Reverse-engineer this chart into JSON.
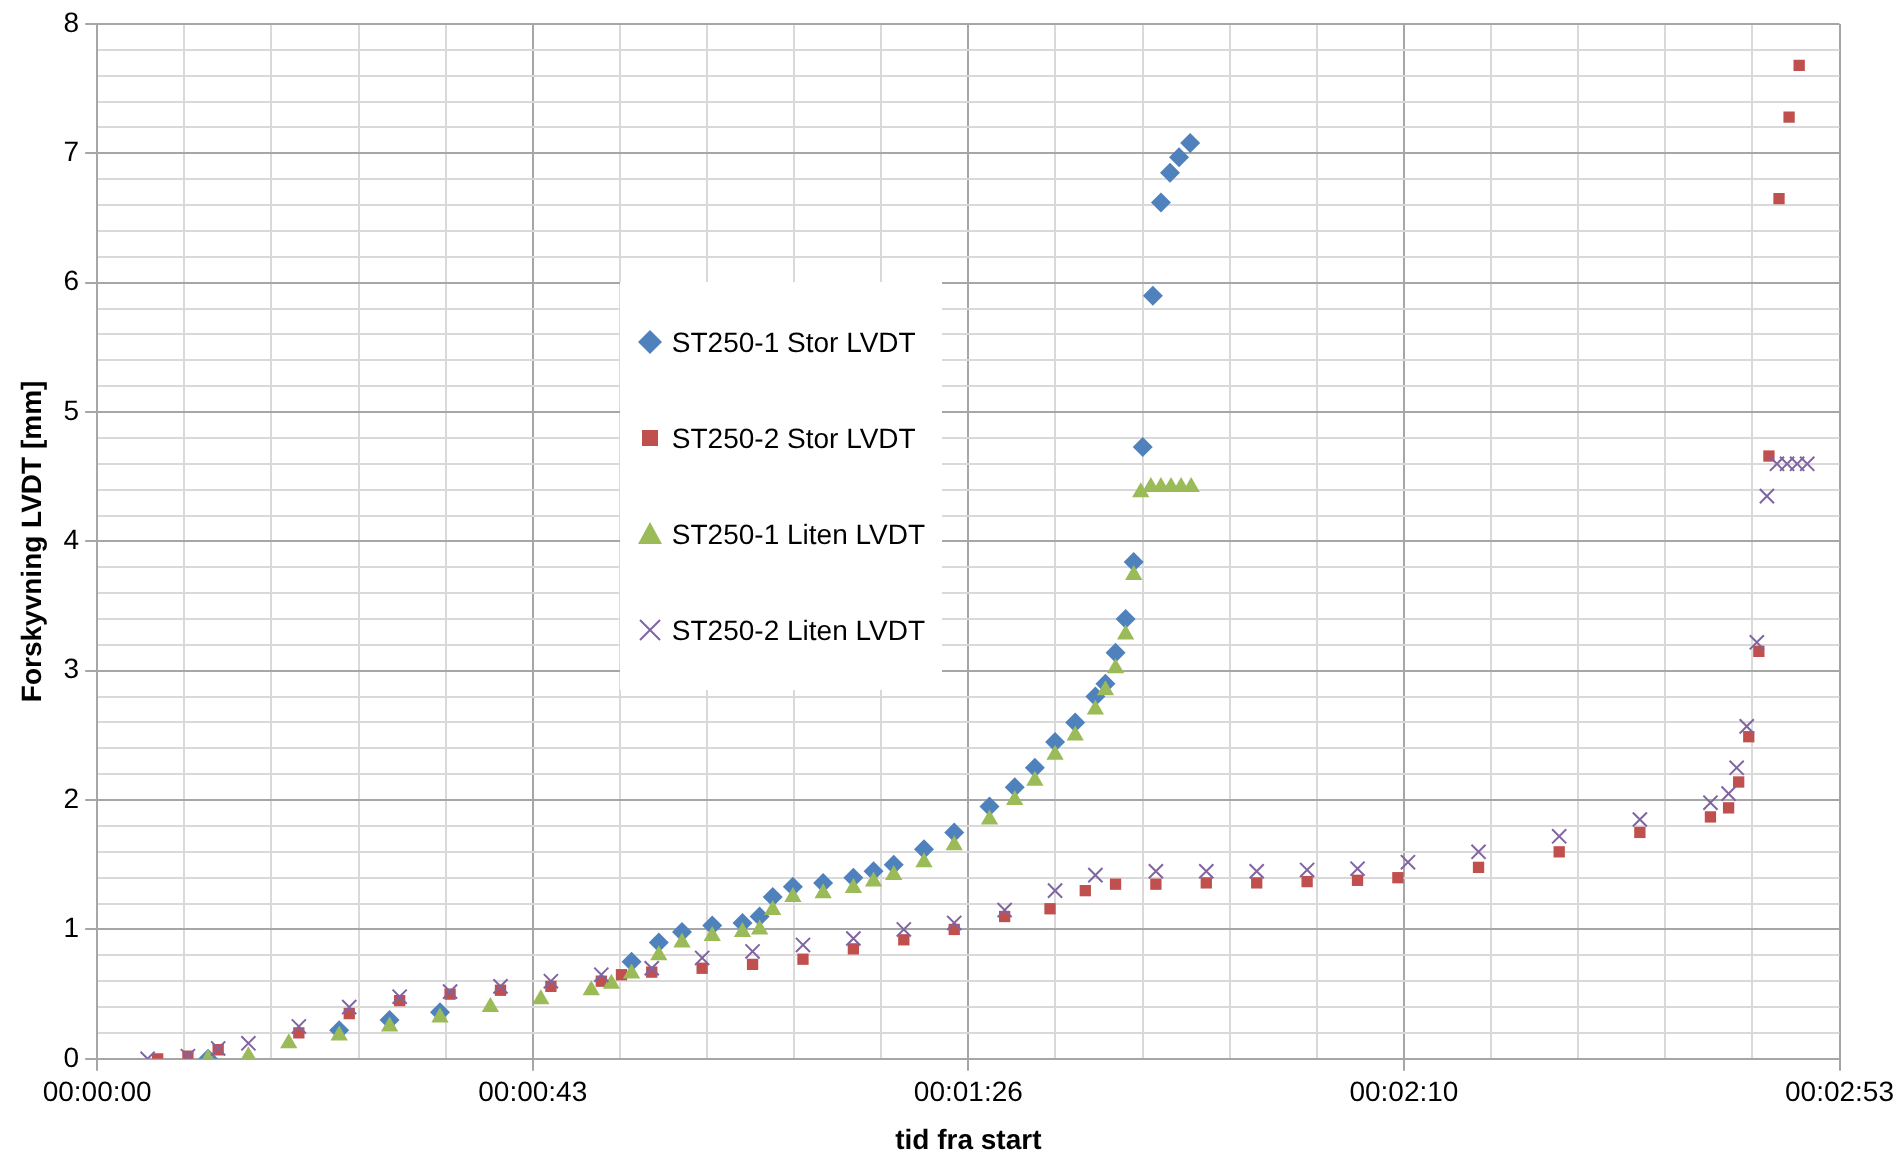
{
  "chart_data": {
    "type": "scatter",
    "xlabel": "tid fra start",
    "ylabel": "Forskyvning LVDT [mm]",
    "legend": "center",
    "grid": true,
    "xlim": [
      0,
      172.8
    ],
    "ylim": [
      0,
      8
    ],
    "xticks": [
      {
        "value": 0,
        "label": "00:00:00"
      },
      {
        "value": 8.64,
        "label": null
      },
      {
        "value": 17.28,
        "label": null
      },
      {
        "value": 25.92,
        "label": null
      },
      {
        "value": 34.56,
        "label": null
      },
      {
        "value": 43.2,
        "label": "00:00:43"
      },
      {
        "value": 51.84,
        "label": null
      },
      {
        "value": 60.48,
        "label": null
      },
      {
        "value": 69.12,
        "label": null
      },
      {
        "value": 77.76,
        "label": null
      },
      {
        "value": 86.4,
        "label": "00:01:26"
      },
      {
        "value": 95.04,
        "label": null
      },
      {
        "value": 103.68,
        "label": null
      },
      {
        "value": 112.32,
        "label": null
      },
      {
        "value": 120.96,
        "label": null
      },
      {
        "value": 129.6,
        "label": "00:02:10"
      },
      {
        "value": 138.24,
        "label": null
      },
      {
        "value": 146.88,
        "label": null
      },
      {
        "value": 155.52,
        "label": null
      },
      {
        "value": 164.16,
        "label": null
      },
      {
        "value": 172.8,
        "label": "00:02:53"
      }
    ],
    "yticks": [
      0,
      {
        "value": 0.2,
        "label": null
      },
      {
        "value": 0.4,
        "label": null
      },
      {
        "value": 0.6,
        "label": null
      },
      {
        "value": 0.8,
        "label": null
      },
      1,
      {
        "value": 1.2,
        "label": null
      },
      {
        "value": 1.4,
        "label": null
      },
      {
        "value": 1.6,
        "label": null
      },
      {
        "value": 1.8,
        "label": null
      },
      2,
      {
        "value": 2.2,
        "label": null
      },
      {
        "value": 2.4,
        "label": null
      },
      {
        "value": 2.6,
        "label": null
      },
      {
        "value": 2.8,
        "label": null
      },
      3,
      {
        "value": 3.2,
        "label": null
      },
      {
        "value": 3.4,
        "label": null
      },
      {
        "value": 3.6,
        "label": null
      },
      {
        "value": 3.8,
        "label": null
      },
      4,
      {
        "value": 4.2,
        "label": null
      },
      {
        "value": 4.4,
        "label": null
      },
      {
        "value": 4.6,
        "label": null
      },
      {
        "value": 4.8,
        "label": null
      },
      5,
      {
        "value": 5.2,
        "label": null
      },
      {
        "value": 5.4,
        "label": null
      },
      {
        "value": 5.6,
        "label": null
      },
      {
        "value": 5.8,
        "label": null
      },
      6,
      {
        "value": 6.2,
        "label": null
      },
      {
        "value": 6.4,
        "label": null
      },
      {
        "value": 6.6,
        "label": null
      },
      {
        "value": 6.8,
        "label": null
      },
      7,
      {
        "value": 7.2,
        "label": null
      },
      {
        "value": 7.4,
        "label": null
      },
      {
        "value": 7.6,
        "label": null
      },
      {
        "value": 7.8,
        "label": null
      },
      8
    ],
    "series": [
      {
        "name": "ST250-1 Stor LVDT",
        "color": "#4f81bd",
        "marker": "diamond",
        "x": [
          11,
          15,
          19,
          24,
          29,
          34,
          39,
          44,
          49,
          51,
          53,
          55.7,
          58,
          61,
          64,
          65.7,
          67,
          69,
          72,
          75,
          77,
          79,
          82,
          85,
          88.5,
          91,
          93,
          95,
          97,
          99,
          100,
          101,
          102,
          102.8,
          103.7,
          104.7,
          105.5,
          106.4,
          107.3,
          108.4
        ],
        "values": [
          0,
          null,
          null,
          0.22,
          0.3,
          0.36,
          null,
          null,
          null,
          null,
          0.75,
          0.9,
          0.98,
          1.03,
          1.05,
          1.1,
          1.25,
          1.33,
          1.36,
          1.4,
          1.45,
          1.5,
          1.62,
          1.75,
          1.95,
          2.1,
          2.25,
          2.45,
          2.6,
          2.8,
          2.9,
          3.14,
          3.4,
          3.84,
          4.73,
          5.9,
          6.62,
          6.85,
          6.97,
          7.08
        ]
      },
      {
        "name": "ST250-2 Stor LVDT",
        "color": "#c0504d",
        "marker": "square",
        "x": [
          6,
          9,
          12,
          15,
          20,
          25,
          30,
          35,
          40,
          45,
          50,
          52,
          55,
          60,
          65,
          70,
          75,
          80,
          85,
          90,
          94.5,
          98,
          101,
          105,
          110,
          115,
          120,
          125,
          129,
          137,
          145,
          153,
          160,
          161.8,
          162.8,
          163.8,
          164.8,
          165.8,
          166.8,
          167.8,
          168.8
        ],
        "values": [
          0,
          0.02,
          0.07,
          null,
          0.2,
          0.35,
          0.45,
          0.5,
          0.53,
          0.56,
          0.6,
          0.65,
          0.67,
          0.7,
          0.73,
          0.77,
          0.85,
          0.92,
          1,
          1.1,
          1.16,
          1.3,
          1.35,
          1.35,
          1.36,
          1.36,
          1.37,
          1.38,
          1.4,
          1.48,
          1.6,
          1.75,
          1.87,
          1.94,
          2.14,
          2.49,
          3.15,
          4.66,
          6.65,
          7.28,
          7.68
        ]
      },
      {
        "name": "ST250-1 Liten LVDT",
        "color": "#9bbb59",
        "marker": "triangle",
        "x": [
          11,
          15,
          19,
          24,
          29,
          34,
          39,
          44,
          49,
          51,
          53,
          55.7,
          58,
          61,
          64,
          65.7,
          67,
          69,
          72,
          75,
          77,
          79,
          82,
          85,
          88.5,
          91,
          93,
          95,
          97,
          99,
          100,
          101,
          102,
          102.8,
          103.5,
          104.5,
          105.5,
          106.5,
          107.5,
          108.5
        ],
        "values": [
          0,
          0.02,
          0.12,
          0.18,
          0.25,
          0.32,
          0.4,
          0.46,
          0.53,
          0.58,
          0.66,
          0.8,
          0.9,
          0.95,
          0.98,
          1,
          1.15,
          1.25,
          1.28,
          1.32,
          1.37,
          1.42,
          1.52,
          1.65,
          1.85,
          2,
          2.15,
          2.35,
          2.5,
          2.7,
          2.85,
          3.02,
          3.28,
          3.74,
          4.38,
          4.42,
          4.42,
          4.42,
          4.42,
          4.42
        ]
      },
      {
        "name": "ST250-2 Liten LVDT",
        "color": "#8064a2",
        "marker": "cross",
        "x": [
          5,
          9,
          12,
          15,
          20,
          25,
          30,
          35,
          40,
          45,
          50,
          55,
          60,
          65,
          70,
          75,
          80,
          85,
          90,
          95,
          99,
          105,
          110,
          115,
          120,
          125,
          130,
          137,
          145,
          153,
          160,
          161.8,
          162.6,
          163.6,
          164.6,
          165.6,
          166.6,
          167.6,
          168.6,
          169.6
        ],
        "values": [
          0,
          0.02,
          0.08,
          0.12,
          0.25,
          0.4,
          0.48,
          0.52,
          0.56,
          0.6,
          0.65,
          0.7,
          0.78,
          0.83,
          0.88,
          0.93,
          1,
          1.05,
          1.15,
          1.3,
          1.42,
          1.45,
          1.45,
          1.45,
          1.46,
          1.47,
          1.52,
          1.6,
          1.72,
          1.85,
          1.98,
          2.05,
          2.25,
          2.57,
          3.22,
          4.35,
          4.6,
          4.6,
          4.6,
          4.6
        ]
      }
    ]
  }
}
